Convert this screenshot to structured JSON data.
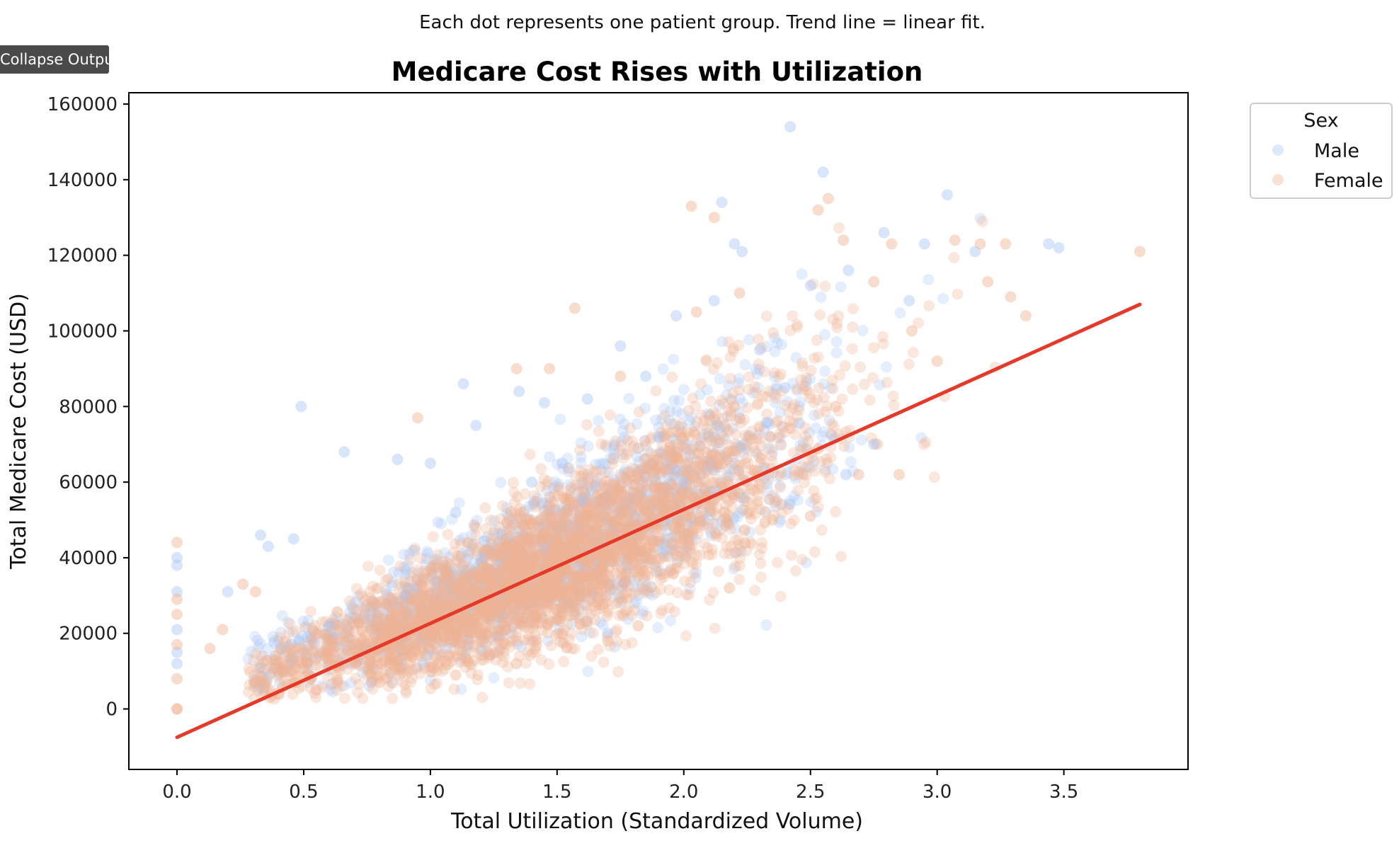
{
  "notebook": {
    "collapse_tooltip": "Collapse Output"
  },
  "chart_data": {
    "type": "scatter",
    "subtitle": "Each dot represents one patient group. Trend line = linear fit.",
    "title": "Medicare Cost Rises with Utilization",
    "xlabel": "Total Utilization (Standardized Volume)",
    "ylabel": "Total Medicare Cost (USD)",
    "xlim": [
      -0.19,
      3.99
    ],
    "ylim": [
      -16000,
      163000
    ],
    "x_ticks": [
      0.0,
      0.5,
      1.0,
      1.5,
      2.0,
      2.5,
      3.0,
      3.5
    ],
    "x_tick_labels": [
      "0.0",
      "0.5",
      "1.0",
      "1.5",
      "2.0",
      "2.5",
      "3.0",
      "3.5"
    ],
    "y_ticks": [
      0,
      20000,
      40000,
      60000,
      80000,
      100000,
      120000,
      140000,
      160000
    ],
    "y_tick_labels": [
      "0",
      "20000",
      "40000",
      "60000",
      "80000",
      "100000",
      "120000",
      "140000",
      "160000"
    ],
    "grid": false,
    "legend": {
      "title": "Sex",
      "placement": "outside-top-right",
      "entries": [
        "Male",
        "Female"
      ]
    },
    "colors": {
      "male": "#a9c6f5",
      "female": "#f0b494",
      "trend": "#e5392a"
    },
    "trend_line": {
      "x": [
        0.0,
        3.8
      ],
      "y": [
        -7500,
        107000
      ]
    },
    "series": [
      {
        "name": "Male",
        "points": [
          [
            0.0,
            40000
          ],
          [
            0.0,
            38000
          ],
          [
            0.0,
            31000
          ],
          [
            0.0,
            21000
          ],
          [
            0.0,
            15000
          ],
          [
            0.0,
            12000
          ],
          [
            0.2,
            31000
          ],
          [
            0.33,
            46000
          ],
          [
            0.36,
            43000
          ],
          [
            0.46,
            45000
          ],
          [
            0.49,
            80000
          ],
          [
            0.66,
            68000
          ],
          [
            0.87,
            66000
          ],
          [
            1.0,
            65000
          ],
          [
            1.18,
            75000
          ],
          [
            1.13,
            86000
          ],
          [
            1.35,
            84000
          ],
          [
            1.45,
            81000
          ],
          [
            1.52,
            65000
          ],
          [
            1.62,
            82000
          ],
          [
            1.75,
            96000
          ],
          [
            1.85,
            88000
          ],
          [
            1.97,
            104000
          ],
          [
            2.12,
            108000
          ],
          [
            2.15,
            134000
          ],
          [
            2.2,
            123000
          ],
          [
            2.23,
            121000
          ],
          [
            2.42,
            154000
          ],
          [
            2.5,
            112000
          ],
          [
            2.55,
            142000
          ],
          [
            2.65,
            116000
          ],
          [
            2.79,
            126000
          ],
          [
            2.95,
            123000
          ],
          [
            3.04,
            136000
          ],
          [
            3.15,
            121000
          ],
          [
            3.44,
            123000
          ],
          [
            3.48,
            122000
          ],
          [
            2.89,
            108000
          ],
          [
            2.3,
            95000
          ],
          [
            1.9,
            72000
          ],
          [
            1.6,
            55000
          ],
          [
            1.2,
            40000
          ],
          [
            0.9,
            30000
          ],
          [
            0.6,
            22000
          ],
          [
            1.7,
            20000
          ],
          [
            2.64,
            62000
          ],
          [
            1.1,
            52000
          ],
          [
            1.4,
            60000
          ],
          [
            2.0,
            60000
          ],
          [
            2.4,
            85000
          ],
          [
            2.75,
            70000
          ]
        ]
      },
      {
        "name": "Female",
        "points": [
          [
            0.0,
            44000
          ],
          [
            0.0,
            29000
          ],
          [
            0.0,
            25000
          ],
          [
            0.0,
            17000
          ],
          [
            0.0,
            8000
          ],
          [
            0.0,
            0
          ],
          [
            0.0,
            0
          ],
          [
            0.13,
            16000
          ],
          [
            0.18,
            21000
          ],
          [
            0.26,
            33000
          ],
          [
            0.31,
            31000
          ],
          [
            0.95,
            77000
          ],
          [
            1.34,
            90000
          ],
          [
            1.47,
            90000
          ],
          [
            1.57,
            106000
          ],
          [
            1.75,
            88000
          ],
          [
            2.05,
            105000
          ],
          [
            2.03,
            133000
          ],
          [
            2.12,
            130000
          ],
          [
            2.22,
            110000
          ],
          [
            2.53,
            132000
          ],
          [
            2.57,
            135000
          ],
          [
            2.63,
            124000
          ],
          [
            2.75,
            113000
          ],
          [
            2.82,
            123000
          ],
          [
            3.07,
            124000
          ],
          [
            3.17,
            123000
          ],
          [
            3.27,
            123000
          ],
          [
            3.29,
            109000
          ],
          [
            3.8,
            121000
          ],
          [
            3.2,
            113000
          ],
          [
            3.35,
            104000
          ],
          [
            2.69,
            62000
          ],
          [
            2.85,
            62000
          ],
          [
            3.0,
            92000
          ],
          [
            2.5,
            51000
          ],
          [
            2.18,
            32000
          ],
          [
            1.82,
            22000
          ],
          [
            1.34,
            12000
          ],
          [
            1.1,
            9000
          ],
          [
            0.8,
            7000
          ],
          [
            0.55,
            5000
          ],
          [
            0.4,
            4000
          ],
          [
            1.7,
            18000
          ],
          [
            2.35,
            50000
          ],
          [
            2.9,
            100000
          ],
          [
            1.5,
            30000
          ],
          [
            1.0,
            20000
          ],
          [
            2.0,
            45000
          ],
          [
            2.6,
            80000
          ]
        ]
      }
    ]
  }
}
